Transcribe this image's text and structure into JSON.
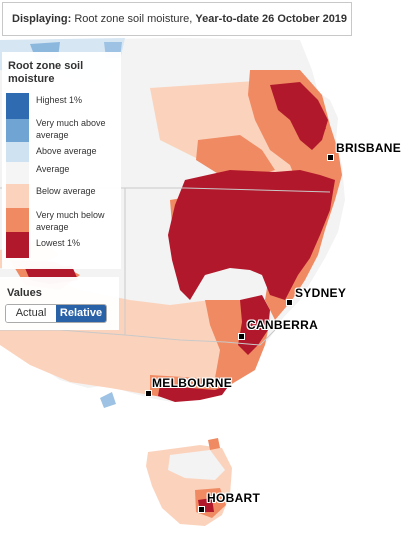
{
  "display": {
    "prefix": "Displaying:",
    "variable": "Root zone soil moisture,",
    "period": "Year-to-date 26 October 2019"
  },
  "legend": {
    "title": "Root zone soil moisture",
    "items": [
      {
        "label": "Highest 1%",
        "color": "#2e6bb0"
      },
      {
        "label": "Very much above average",
        "color": "#6fa4d3"
      },
      {
        "label": "Above average",
        "color": "#cfe2f1"
      },
      {
        "label": "Average",
        "color": "#f5f5f5"
      },
      {
        "label": "Below average",
        "color": "#fbd3bd"
      },
      {
        "label": "Very much below average",
        "color": "#ef8a62"
      },
      {
        "label": "Lowest 1%",
        "color": "#b2182b"
      }
    ]
  },
  "values_toggle": {
    "title": "Values",
    "options": [
      "Actual",
      "Relative"
    ],
    "selected": "Relative"
  },
  "cities": [
    {
      "name": "BRISBANE"
    },
    {
      "name": "SYDNEY"
    },
    {
      "name": "CANBERRA"
    },
    {
      "name": "MELBOURNE"
    },
    {
      "name": "HOBART"
    }
  ]
}
